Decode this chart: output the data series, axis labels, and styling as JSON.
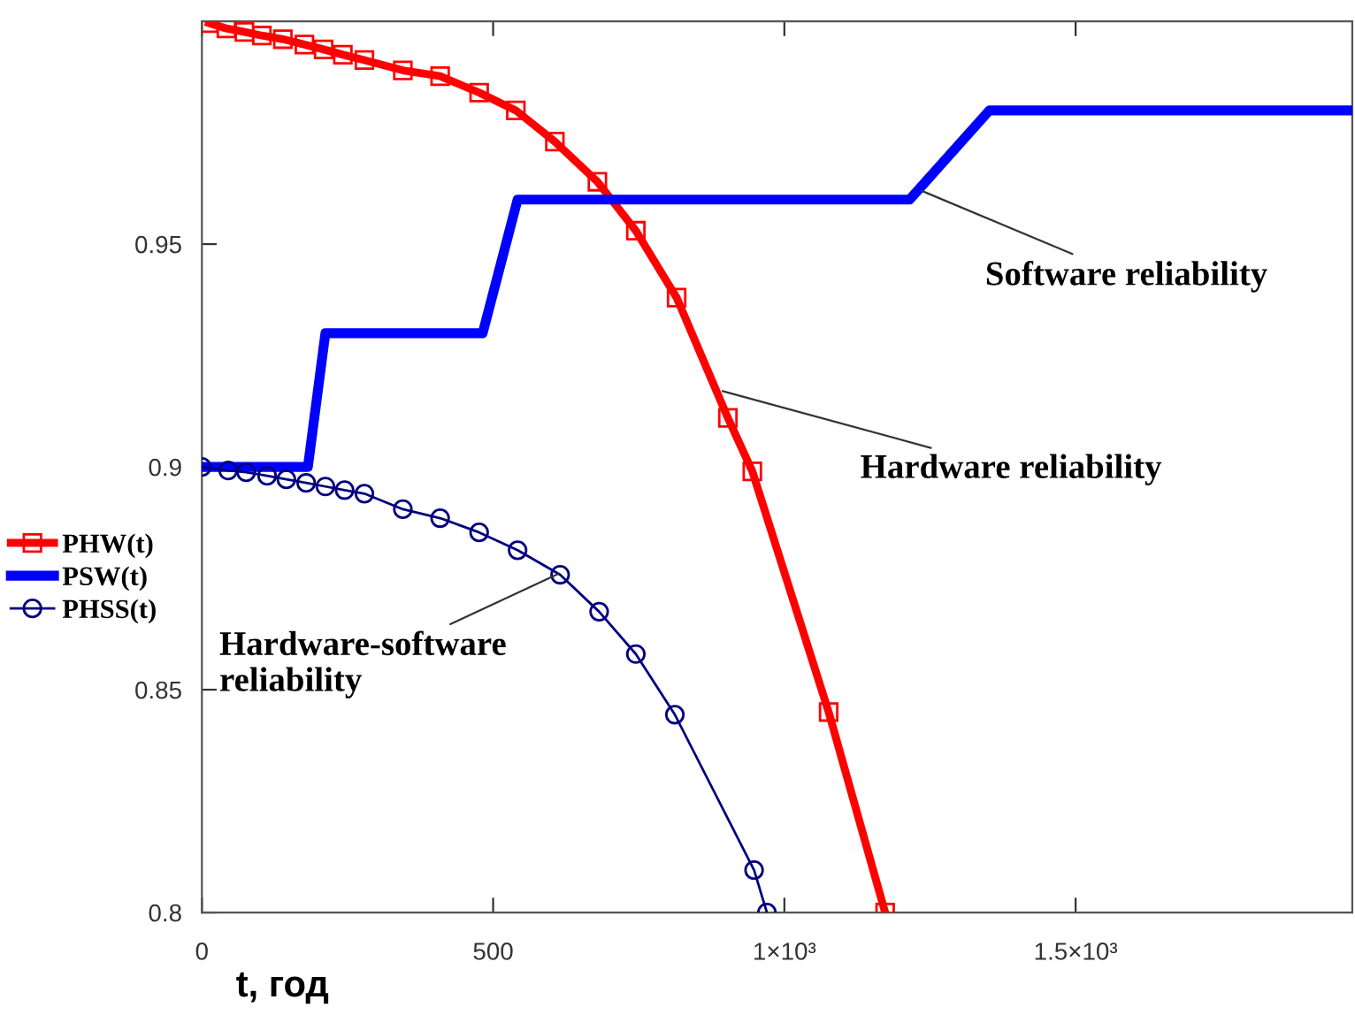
{
  "chart_data": {
    "type": "line",
    "xlabel": "t, год",
    "xlim": [
      0,
      1975
    ],
    "ylim": [
      0.8,
      1.0
    ],
    "xticks": [
      0,
      500,
      {
        "value": 1000,
        "label": "1×10³"
      },
      {
        "value": 1500,
        "label": "1.5×10³"
      }
    ],
    "yticks": [
      0.8,
      0.85,
      0.9,
      0.95
    ],
    "grid": false,
    "legend": "left",
    "series": [
      {
        "name": "PHW(t)",
        "color": "#ff0000",
        "marker": "square",
        "line_style": "solid",
        "x": [
          12,
          42,
          73,
          103,
          139,
          176,
          209,
          242,
          279,
          345,
          409,
          476,
          539,
          606,
          679,
          745,
          815,
          903,
          945,
          1076,
          1173
        ],
        "values": [
          0.9996,
          0.9984,
          0.9976,
          0.9968,
          0.996,
          0.9948,
          0.9937,
          0.9925,
          0.9913,
          0.989,
          0.9877,
          0.984,
          0.98,
          0.973,
          0.964,
          0.953,
          0.938,
          0.911,
          0.899,
          0.845,
          0.8
        ]
      },
      {
        "name": "PSW(t)",
        "color": "#0000ff",
        "marker": "none",
        "line_style": "solid",
        "x": [
          0,
          182,
          212,
          482,
          542,
          1215,
          1352,
          1975
        ],
        "values": [
          0.9,
          0.9,
          0.93,
          0.93,
          0.96,
          0.96,
          0.98,
          0.98
        ]
      },
      {
        "name": "PHSS(t)",
        "color": "#000080",
        "marker": "circle",
        "line_style": "solid",
        "x": [
          0,
          45,
          76,
          112,
          145,
          179,
          212,
          245,
          279,
          345,
          409,
          476,
          542,
          615,
          682,
          745,
          812,
          948,
          970
        ],
        "values": [
          0.9,
          0.8992,
          0.8988,
          0.898,
          0.8972,
          0.8964,
          0.8956,
          0.8948,
          0.894,
          0.8905,
          0.8885,
          0.8853,
          0.8813,
          0.8758,
          0.8675,
          0.858,
          0.8444,
          0.8095,
          0.8
        ]
      }
    ],
    "annotations": [
      {
        "text": "Software reliability",
        "x": 1235,
        "y": 0.962
      },
      {
        "text": "Hardware reliability",
        "x": 894,
        "y": 0.917
      },
      {
        "text": "Hardware-software\nreliability",
        "x": 612,
        "y": 0.876
      }
    ]
  }
}
